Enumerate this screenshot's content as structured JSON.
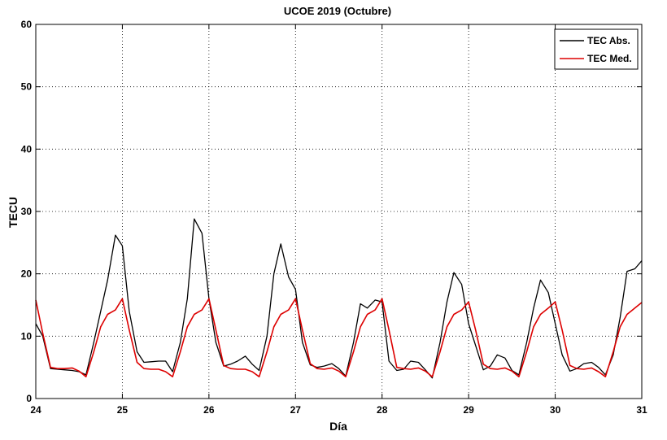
{
  "chart_data": {
    "type": "line",
    "title": "UCOE 2019 (Octubre)",
    "xlabel": "Día",
    "ylabel": "TECU",
    "xlim": [
      24,
      31
    ],
    "ylim": [
      0,
      60
    ],
    "xticks": [
      24,
      25,
      26,
      27,
      28,
      29,
      30,
      31
    ],
    "yticks": [
      0,
      10,
      20,
      30,
      40,
      50,
      60
    ],
    "grid": true,
    "legend_position": "top-right",
    "series": [
      {
        "name": "TEC Abs.",
        "color": "#000000",
        "x": [
          24.0,
          24.08,
          24.17,
          24.25,
          24.33,
          24.42,
          24.5,
          24.58,
          24.67,
          24.75,
          24.83,
          24.92,
          25.0,
          25.08,
          25.17,
          25.25,
          25.33,
          25.42,
          25.5,
          25.58,
          25.67,
          25.75,
          25.83,
          25.92,
          26.0,
          26.08,
          26.17,
          26.25,
          26.33,
          26.42,
          26.5,
          26.58,
          26.67,
          26.75,
          26.83,
          26.92,
          27.0,
          27.08,
          27.17,
          27.25,
          27.33,
          27.42,
          27.5,
          27.58,
          27.67,
          27.75,
          27.83,
          27.92,
          28.0,
          28.08,
          28.17,
          28.25,
          28.33,
          28.42,
          28.5,
          28.58,
          28.67,
          28.75,
          28.83,
          28.92,
          29.0,
          29.08,
          29.17,
          29.25,
          29.33,
          29.42,
          29.5,
          29.58,
          29.67,
          29.75,
          29.83,
          29.92,
          30.0,
          30.08,
          30.17,
          30.25,
          30.33,
          30.42,
          30.5,
          30.58,
          30.67,
          30.75,
          30.83,
          30.92,
          31.0
        ],
        "y": [
          12.0,
          10.0,
          4.8,
          4.7,
          4.6,
          4.5,
          4.3,
          3.8,
          9.0,
          14.0,
          19.0,
          26.2,
          24.5,
          14.0,
          7.5,
          5.8,
          5.9,
          6.0,
          6.0,
          4.3,
          9.0,
          16.0,
          28.8,
          26.5,
          16.0,
          9.0,
          5.2,
          5.5,
          6.0,
          6.8,
          5.5,
          4.5,
          10.0,
          20.0,
          24.8,
          19.5,
          17.5,
          9.0,
          5.4,
          5.0,
          5.2,
          5.6,
          4.8,
          3.6,
          9.0,
          15.2,
          14.5,
          15.8,
          15.5,
          6.0,
          4.5,
          4.7,
          6.0,
          5.8,
          4.6,
          3.3,
          9.0,
          15.5,
          20.2,
          18.3,
          12.0,
          8.5,
          4.6,
          5.2,
          7.0,
          6.5,
          4.5,
          3.8,
          9.0,
          14.5,
          19.0,
          17.0,
          12.0,
          7.0,
          4.4,
          4.8,
          5.6,
          5.8,
          5.0,
          3.8,
          7.0,
          13.0,
          20.4,
          20.8,
          22.1
        ]
      },
      {
        "name": "TEC Med.",
        "color": "#dd0000",
        "x": [
          24.0,
          24.08,
          24.17,
          24.25,
          24.33,
          24.42,
          24.5,
          24.58,
          24.67,
          24.75,
          24.83,
          24.92,
          25.0,
          25.08,
          25.17,
          25.25,
          25.33,
          25.42,
          25.5,
          25.58,
          25.67,
          25.75,
          25.83,
          25.92,
          26.0,
          26.08,
          26.17,
          26.25,
          26.33,
          26.42,
          26.5,
          26.58,
          26.67,
          26.75,
          26.83,
          26.92,
          27.0,
          27.08,
          27.17,
          27.25,
          27.33,
          27.42,
          27.5,
          27.58,
          27.67,
          27.75,
          27.83,
          27.92,
          28.0,
          28.08,
          28.17,
          28.25,
          28.33,
          28.42,
          28.5,
          28.58,
          28.67,
          28.75,
          28.83,
          28.92,
          29.0,
          29.08,
          29.17,
          29.25,
          29.33,
          29.42,
          29.5,
          29.58,
          29.67,
          29.75,
          29.83,
          29.92,
          30.0,
          30.08,
          30.17,
          30.25,
          30.33,
          30.42,
          30.5,
          30.58,
          30.67,
          30.75,
          30.83,
          30.92,
          31.0
        ],
        "y": [
          15.8,
          10.5,
          5.0,
          4.8,
          4.8,
          4.9,
          4.4,
          3.5,
          7.5,
          11.5,
          13.5,
          14.2,
          16.0,
          11.0,
          5.8,
          4.8,
          4.7,
          4.7,
          4.3,
          3.5,
          7.5,
          11.5,
          13.5,
          14.2,
          16.0,
          11.0,
          5.3,
          4.8,
          4.7,
          4.7,
          4.3,
          3.5,
          7.5,
          11.5,
          13.5,
          14.2,
          16.0,
          11.0,
          5.6,
          4.8,
          4.7,
          4.9,
          4.4,
          3.5,
          7.5,
          11.5,
          13.5,
          14.2,
          16.0,
          11.0,
          5.0,
          4.8,
          4.7,
          4.9,
          4.4,
          3.5,
          7.5,
          11.5,
          13.5,
          14.2,
          15.5,
          11.0,
          5.5,
          4.8,
          4.7,
          4.9,
          4.4,
          3.5,
          7.5,
          11.5,
          13.5,
          14.5,
          15.5,
          11.0,
          5.3,
          4.8,
          4.7,
          4.9,
          4.3,
          3.5,
          7.5,
          11.5,
          13.5,
          14.5,
          15.4
        ]
      }
    ]
  }
}
